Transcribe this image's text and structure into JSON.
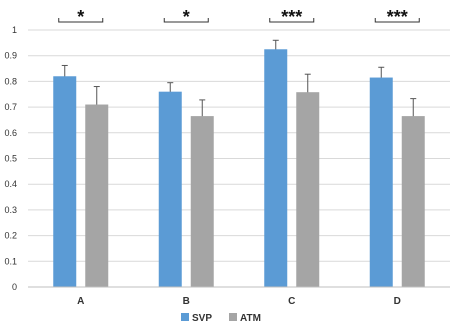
{
  "chart_data": {
    "type": "bar",
    "categories": [
      "A",
      "B",
      "C",
      "D"
    ],
    "series": [
      {
        "name": "SVP",
        "color": "#5B9BD5",
        "values": [
          0.82,
          0.76,
          0.925,
          0.815
        ],
        "errors": [
          0.042,
          0.035,
          0.035,
          0.04
        ]
      },
      {
        "name": "ATM",
        "color": "#A5A5A5",
        "values": [
          0.71,
          0.665,
          0.758,
          0.665
        ],
        "errors": [
          0.07,
          0.063,
          0.07,
          0.068
        ]
      }
    ],
    "significance": [
      "*",
      "*",
      "***",
      "***"
    ],
    "ylim": [
      0,
      1
    ],
    "yticks": [
      "0",
      "0.1",
      "0.2",
      "0.3",
      "0.4",
      "0.5",
      "0.6",
      "0.7",
      "0.8",
      "0.9",
      "1"
    ],
    "grid": true,
    "legend_position": "bottom",
    "title": "",
    "xlabel": "",
    "ylabel": ""
  }
}
